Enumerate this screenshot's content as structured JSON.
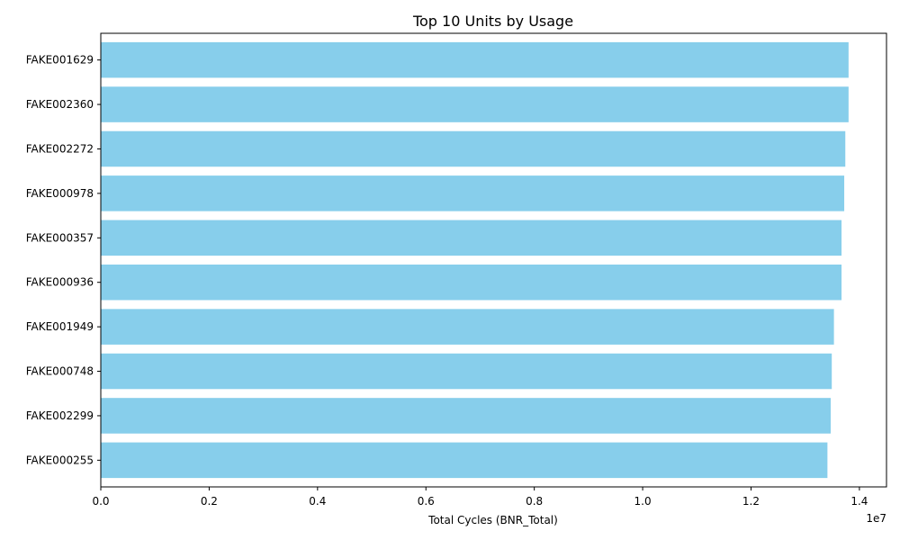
{
  "chart_data": {
    "type": "bar",
    "orientation": "horizontal",
    "title": "Top 10 Units by Usage",
    "xlabel": "Total Cycles (BNR_Total)",
    "ylabel": "",
    "x_scale_label": "1e7",
    "xlim": [
      0,
      14500000
    ],
    "x_ticks": [
      0,
      2000000,
      4000000,
      6000000,
      8000000,
      10000000,
      12000000,
      14000000
    ],
    "x_tick_labels": [
      "0.0",
      "0.2",
      "0.4",
      "0.6",
      "0.8",
      "1.0",
      "1.2",
      "1.4"
    ],
    "categories": [
      "FAKE001629",
      "FAKE002360",
      "FAKE002272",
      "FAKE000978",
      "FAKE000357",
      "FAKE000936",
      "FAKE001949",
      "FAKE000748",
      "FAKE002299",
      "FAKE000255"
    ],
    "values": [
      13800000,
      13800000,
      13740000,
      13720000,
      13670000,
      13670000,
      13530000,
      13490000,
      13470000,
      13410000
    ],
    "bar_color": "#87CEEB",
    "grid": false
  }
}
